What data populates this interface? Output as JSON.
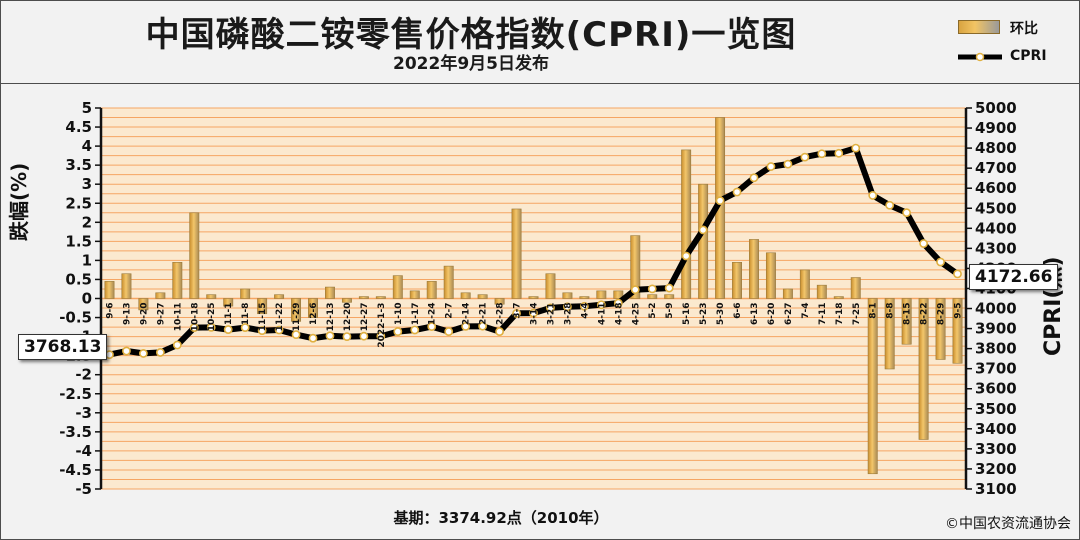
{
  "header": {
    "title": "中国磷酸二铵零售价格指数(CPRI)一览图",
    "subtitle": "2022年9月5日发布"
  },
  "legend": {
    "bar_label": "环比",
    "line_label": "CPRI"
  },
  "footer": {
    "base": "基期：3374.92点（2010年）",
    "copyright": "©中国农资流通协会"
  },
  "callouts": {
    "start_value": "3768.13",
    "end_value": "4172.66"
  },
  "colors": {
    "bar": "#e8b04a",
    "bar_edge": "#9a7a3a",
    "grid": "#f5a563",
    "plot_bg": "#fbe9cf",
    "line": "#000000",
    "marker_fill": "#ffffff",
    "marker_stroke": "#e0b040"
  },
  "chart_data": {
    "type": "bar",
    "title": "中国磷酸二铵零售价格指数(CPRI)一览图",
    "subtitle": "2022年9月5日发布",
    "ylabel_left": "跌幅(%)",
    "ylabel_right": "CPRI(点)",
    "ylim_left": [
      -5,
      5
    ],
    "ylim_right": [
      3100,
      5000
    ],
    "yticks_left": [
      "5",
      "4.5",
      "4",
      "3.5",
      "3",
      "2.5",
      "2",
      "1.5",
      "1",
      "0.5",
      "0",
      "-0.5",
      "-1",
      "-1.5",
      "-2",
      "-2.5",
      "-3",
      "-3.5",
      "-4",
      "-4.5",
      "-5"
    ],
    "yticks_right": [
      "5000",
      "4900",
      "4800",
      "4700",
      "4600",
      "4500",
      "4400",
      "4300",
      "4200",
      "4100",
      "4000",
      "3900",
      "3800",
      "3700",
      "3600",
      "3500",
      "3400",
      "3300",
      "3200",
      "3100"
    ],
    "grid": true,
    "legend_position": "top-right",
    "categories": [
      "9-6",
      "9-13",
      "9-20",
      "9-27",
      "10-11",
      "10-18",
      "10-25",
      "11-1",
      "11-8",
      "11-15",
      "11-22",
      "11-29",
      "12-6",
      "12-13",
      "12-20",
      "12-27",
      "2022-1-3",
      "1-10",
      "1-17",
      "1-24",
      "2-7",
      "2-14",
      "2-21",
      "2-28",
      "3-7",
      "3-14",
      "3-21",
      "3-28",
      "4-4",
      "4-11",
      "4-18",
      "4-25",
      "5-2",
      "5-9",
      "5-16",
      "5-23",
      "5-30",
      "6-6",
      "6-13",
      "6-20",
      "6-27",
      "7-4",
      "7-11",
      "7-18",
      "7-25",
      "8-1",
      "8-8",
      "8-15",
      "8-22",
      "8-29",
      "9-5"
    ],
    "series": [
      {
        "name": "环比",
        "type": "bar",
        "axis": "left",
        "values": [
          0.45,
          0.65,
          -0.3,
          0.15,
          0.95,
          2.25,
          0.1,
          -0.2,
          0.25,
          -0.4,
          0.1,
          -0.6,
          -0.5,
          0.3,
          -0.1,
          0.05,
          0.05,
          0.6,
          0.2,
          0.45,
          0.85,
          0.15,
          0.1,
          -0.15,
          2.35,
          0.05,
          0.65,
          0.15,
          0.05,
          0.2,
          0.2,
          1.65,
          0.1,
          0.1,
          3.9,
          3.0,
          4.75,
          0.95,
          1.55,
          1.2,
          0.25,
          0.75,
          0.35,
          0.05,
          0.55,
          -4.6,
          -1.85,
          -1.2,
          -3.7,
          -1.6,
          -1.7
        ]
      },
      {
        "name": "CPRI",
        "type": "line",
        "axis": "right",
        "values": [
          3770,
          3788,
          3776,
          3781,
          3818,
          3905,
          3906,
          3895,
          3905,
          3890,
          3893,
          3870,
          3852,
          3864,
          3860,
          3862,
          3862,
          3885,
          3893,
          3910,
          3885,
          3911,
          3912,
          3885,
          3976,
          3977,
          4003,
          4009,
          4011,
          4019,
          4027,
          4094,
          4098,
          4102,
          4262,
          4392,
          4538,
          4581,
          4652,
          4708,
          4720,
          4755,
          4772,
          4774,
          4800,
          4564,
          4515,
          4478,
          4324,
          4232,
          4172.66
        ]
      }
    ]
  }
}
